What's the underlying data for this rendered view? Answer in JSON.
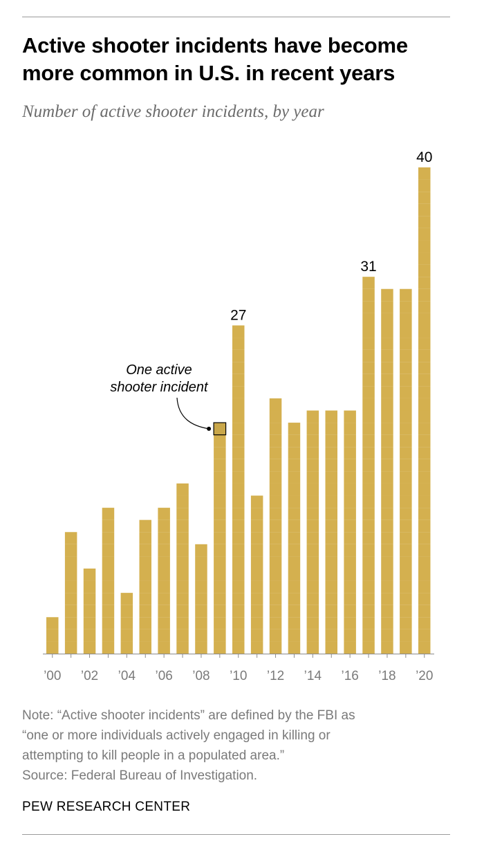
{
  "header": {
    "title": "Active shooter incidents have become more common in U.S. in recent years",
    "subtitle": "Number of active shooter incidents, by year"
  },
  "chart_data": {
    "type": "bar",
    "style": "stacked unit squares (one square = one incident)",
    "categories": [
      "2000",
      "2001",
      "2002",
      "2003",
      "2004",
      "2005",
      "2006",
      "2007",
      "2008",
      "2009",
      "2010",
      "2011",
      "2012",
      "2013",
      "2014",
      "2015",
      "2016",
      "2017",
      "2018",
      "2019",
      "2020"
    ],
    "tick_labels": [
      "’00",
      "’02",
      "’04",
      "’06",
      "’08",
      "’10",
      "’12",
      "’14",
      "’16",
      "’18",
      "’20"
    ],
    "values": [
      3,
      10,
      7,
      12,
      5,
      11,
      12,
      14,
      9,
      19,
      27,
      13,
      21,
      19,
      20,
      20,
      20,
      31,
      30,
      30,
      40
    ],
    "data_labels": {
      "2010": "27",
      "2017": "31",
      "2020": "40"
    },
    "annotation": {
      "year": "2009",
      "unit_index": 19,
      "line1": "One active",
      "line2": "shooter incident"
    },
    "bar_color": "#d4b04f",
    "highlight_color": "#c9a74a",
    "xlabel": "",
    "ylabel": "",
    "ylim": [
      0,
      40
    ]
  },
  "footer": {
    "note_lines": [
      "Note: “Active shooter incidents” are defined by the FBI as",
      "“one or more individuals actively engaged in killing or",
      "attempting to kill people in a populated area.”"
    ],
    "source": "Source: Federal Bureau of Investigation.",
    "brand": "PEW RESEARCH CENTER"
  }
}
